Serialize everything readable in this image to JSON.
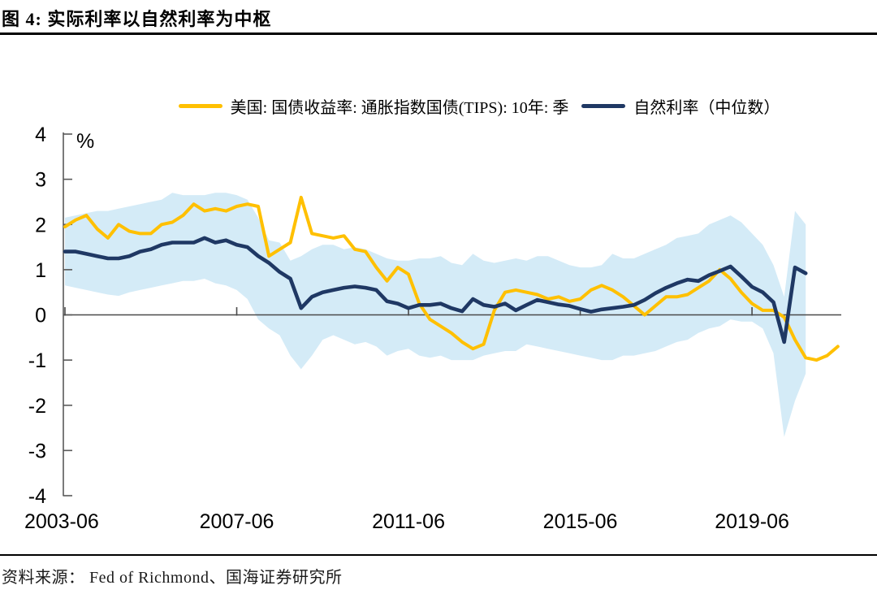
{
  "header": {
    "title": "图 4:  实际利率以自然利率为中枢"
  },
  "footer": {
    "source": "资料来源： Fed of Richmond、国海证券研究所"
  },
  "colors": {
    "tips_line": "#FFC000",
    "natural_rate_line": "#1F3864",
    "confidence_band": "#D4EBF7",
    "axis": "#595959",
    "zero_line": "#4a4a4a",
    "title_rule": "#000000"
  },
  "chart_data": {
    "type": "line",
    "title": "实际利率以自然利率为中枢",
    "unit": "%",
    "x_frequency": "quarterly",
    "x_start": "2003-06",
    "ylim": [
      -4,
      4
    ],
    "grid": false,
    "legend_position": "top-center",
    "y_ticks": [
      "4",
      "3",
      "2",
      "1",
      "0",
      "-1",
      "-2",
      "-3",
      "-4"
    ],
    "x_tick_labels": [
      "2003-06",
      "2007-06",
      "2011-06",
      "2015-06",
      "2019-06"
    ],
    "x_tick_quarters": [
      0,
      16,
      32,
      48,
      64
    ],
    "series": [
      {
        "name": "美国: 国债收益率: 通胀指数国债(TIPS): 10年: 季",
        "color": "#FFC000",
        "start": "2003-06",
        "end": "2021-06",
        "values": [
          1.95,
          2.1,
          2.2,
          1.9,
          1.7,
          2.0,
          1.85,
          1.8,
          1.8,
          2.0,
          2.05,
          2.2,
          2.45,
          2.3,
          2.35,
          2.3,
          2.4,
          2.45,
          2.4,
          1.3,
          1.45,
          1.6,
          2.6,
          1.8,
          1.75,
          1.7,
          1.75,
          1.45,
          1.4,
          1.05,
          0.75,
          1.05,
          0.9,
          0.25,
          -0.1,
          -0.25,
          -0.4,
          -0.6,
          -0.75,
          -0.65,
          0.1,
          0.5,
          0.55,
          0.5,
          0.45,
          0.35,
          0.4,
          0.3,
          0.35,
          0.55,
          0.65,
          0.55,
          0.4,
          0.2,
          0.0,
          0.2,
          0.4,
          0.4,
          0.45,
          0.6,
          0.75,
          1.0,
          0.8,
          0.5,
          0.25,
          0.1,
          0.1,
          -0.05,
          -0.55,
          -0.95,
          -1.0,
          -0.9,
          -0.7
        ]
      },
      {
        "name": "自然利率（中位数）",
        "color": "#1F3864",
        "start": "2003-06",
        "end": "2020-09",
        "values": [
          1.4,
          1.4,
          1.35,
          1.3,
          1.25,
          1.25,
          1.3,
          1.4,
          1.45,
          1.55,
          1.6,
          1.6,
          1.6,
          1.7,
          1.6,
          1.65,
          1.55,
          1.5,
          1.3,
          1.15,
          0.95,
          0.8,
          0.15,
          0.4,
          0.5,
          0.55,
          0.6,
          0.63,
          0.6,
          0.55,
          0.3,
          0.25,
          0.15,
          0.22,
          0.22,
          0.25,
          0.15,
          0.08,
          0.35,
          0.22,
          0.18,
          0.25,
          0.1,
          0.22,
          0.33,
          0.28,
          0.23,
          0.2,
          0.13,
          0.07,
          0.12,
          0.15,
          0.18,
          0.22,
          0.33,
          0.48,
          0.6,
          0.7,
          0.78,
          0.75,
          0.88,
          0.97,
          1.07,
          0.85,
          0.62,
          0.5,
          0.28,
          -0.6,
          1.05,
          0.92
        ]
      }
    ],
    "band": {
      "color": "#D4EBF7",
      "start": "2003-06",
      "end": "2020-09",
      "upper": [
        2.15,
        2.2,
        2.25,
        2.3,
        2.3,
        2.35,
        2.4,
        2.45,
        2.5,
        2.55,
        2.7,
        2.65,
        2.65,
        2.65,
        2.7,
        2.7,
        2.65,
        2.55,
        2.15,
        1.65,
        1.6,
        1.2,
        1.3,
        1.45,
        1.55,
        1.55,
        1.45,
        1.5,
        1.45,
        1.35,
        1.25,
        1.2,
        1.2,
        1.25,
        1.25,
        1.3,
        1.15,
        1.1,
        1.35,
        1.2,
        1.15,
        1.2,
        1.25,
        1.2,
        1.3,
        1.3,
        1.2,
        1.1,
        1.05,
        1.05,
        1.1,
        1.35,
        1.25,
        1.25,
        1.35,
        1.45,
        1.55,
        1.7,
        1.75,
        1.8,
        2.0,
        2.1,
        2.2,
        2.05,
        1.8,
        1.55,
        1.1,
        0.4,
        2.3,
        2.0
      ],
      "lower": [
        0.65,
        0.6,
        0.55,
        0.5,
        0.45,
        0.42,
        0.5,
        0.55,
        0.6,
        0.65,
        0.7,
        0.75,
        0.75,
        0.8,
        0.7,
        0.65,
        0.55,
        0.35,
        -0.1,
        -0.3,
        -0.45,
        -0.9,
        -1.2,
        -0.9,
        -0.55,
        -0.45,
        -0.55,
        -0.65,
        -0.6,
        -0.7,
        -0.9,
        -0.8,
        -0.75,
        -0.9,
        -0.95,
        -0.9,
        -1.0,
        -1.0,
        -1.0,
        -0.9,
        -0.85,
        -0.8,
        -0.8,
        -0.65,
        -0.7,
        -0.75,
        -0.8,
        -0.85,
        -0.9,
        -0.95,
        -1.0,
        -1.0,
        -0.9,
        -0.9,
        -0.85,
        -0.8,
        -0.7,
        -0.6,
        -0.55,
        -0.4,
        -0.3,
        -0.25,
        -0.1,
        -0.15,
        -0.15,
        -0.3,
        -0.85,
        -2.7,
        -1.9,
        -1.3
      ]
    }
  }
}
